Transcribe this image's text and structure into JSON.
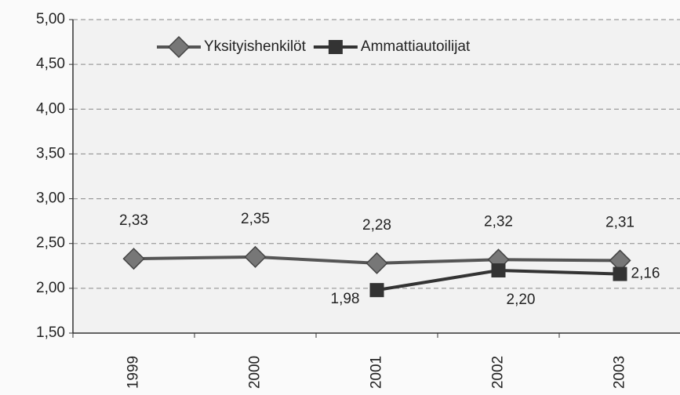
{
  "chart_data": {
    "type": "line",
    "categories": [
      "1999",
      "2000",
      "2001",
      "2002",
      "2003"
    ],
    "series": [
      {
        "name": "Yksityishenkilöt",
        "color": "#555555",
        "marker": "diamond",
        "values": [
          2.33,
          2.35,
          2.28,
          2.32,
          2.31
        ],
        "value_labels": [
          "2,33",
          "2,35",
          "2,28",
          "2,32",
          "2,31"
        ]
      },
      {
        "name": "Ammattiautoilijat",
        "color": "#333333",
        "marker": "square",
        "values": [
          null,
          null,
          1.98,
          2.2,
          2.16
        ],
        "value_labels": [
          null,
          null,
          "1,98",
          "2,20",
          "2,16"
        ]
      }
    ],
    "ylim": [
      1.5,
      5.0
    ],
    "yticks": [
      {
        "value": 1.5,
        "label": "1,50"
      },
      {
        "value": 2.0,
        "label": "2,00"
      },
      {
        "value": 2.5,
        "label": "2,50"
      },
      {
        "value": 3.0,
        "label": "3,00"
      },
      {
        "value": 3.5,
        "label": "3,50"
      },
      {
        "value": 4.0,
        "label": "4,00"
      },
      {
        "value": 4.5,
        "label": "4,50"
      },
      {
        "value": 5.0,
        "label": "5,00"
      }
    ],
    "grid": true,
    "legend": "top"
  }
}
